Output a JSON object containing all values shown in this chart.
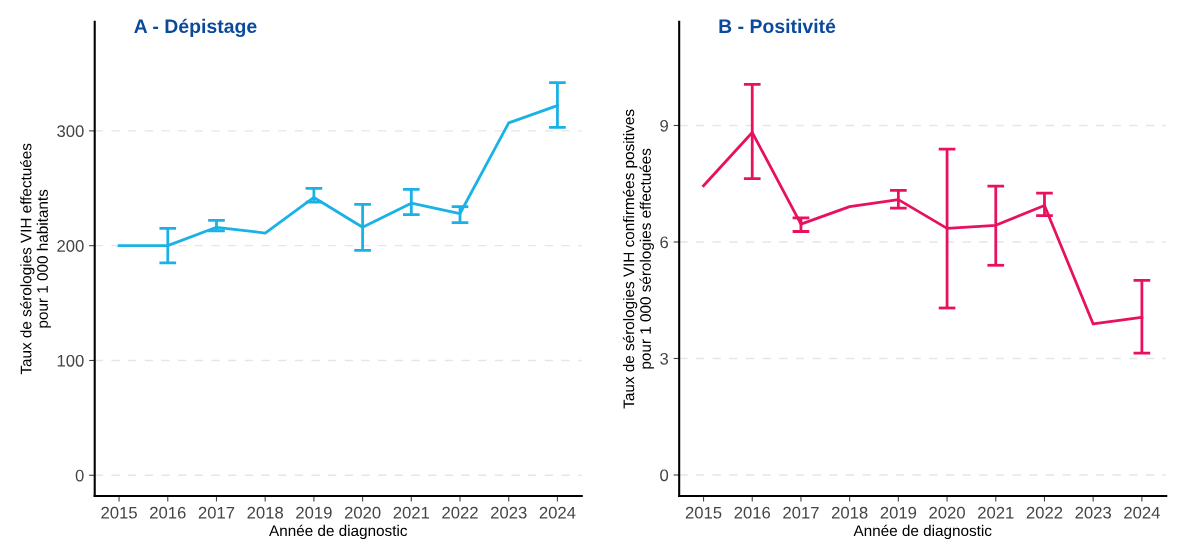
{
  "chart_data": [
    {
      "type": "line",
      "title": "A - Dépistage",
      "xlabel": "Année de diagnostic",
      "ylabel": "Taux de sérologies VIH effectuées\npour 1 000 habitants",
      "categories": [
        "2015",
        "2016",
        "2017",
        "2018",
        "2019",
        "2020",
        "2021",
        "2022",
        "2023",
        "2024"
      ],
      "series": [
        {
          "color": "#1ab2e6",
          "values": [
            200,
            200,
            216,
            211,
            242,
            216,
            237,
            228,
            307,
            322
          ],
          "errors": [
            null,
            [
              185,
              215
            ],
            [
              213,
              222
            ],
            null,
            [
              238,
              250
            ],
            [
              196,
              236
            ],
            [
              227,
              249
            ],
            [
              220,
              234
            ],
            null,
            [
              303,
              342
            ]
          ]
        }
      ],
      "ylim": [
        -18,
        395
      ],
      "yticks": [
        0,
        100,
        200,
        300
      ],
      "grid": "y",
      "marker": "none",
      "line_style": "solid"
    },
    {
      "type": "line",
      "title": "B - Positivité",
      "xlabel": "Année de diagnostic",
      "ylabel": "Taux de sérologies VIH confirmées positives\npour 1 000 sérologies effectuées",
      "categories": [
        "2015",
        "2016",
        "2017",
        "2018",
        "2019",
        "2020",
        "2021",
        "2022",
        "2023",
        "2024"
      ],
      "series": [
        {
          "color": "#e8115f",
          "values": [
            7.45,
            8.82,
            6.46,
            6.91,
            7.09,
            6.35,
            6.43,
            6.94,
            3.89,
            4.06
          ],
          "errors": [
            null,
            [
              7.63,
              10.06
            ],
            [
              6.27,
              6.62
            ],
            null,
            [
              6.87,
              7.33
            ],
            [
              4.3,
              8.39
            ],
            [
              5.4,
              7.44
            ],
            [
              6.68,
              7.26
            ],
            null,
            [
              3.14,
              5.01
            ]
          ]
        }
      ],
      "ylim": [
        -0.54,
        11.67
      ],
      "yticks": [
        0,
        3,
        6,
        9
      ],
      "grid": "y",
      "marker": "none",
      "line_style": "solid"
    }
  ]
}
